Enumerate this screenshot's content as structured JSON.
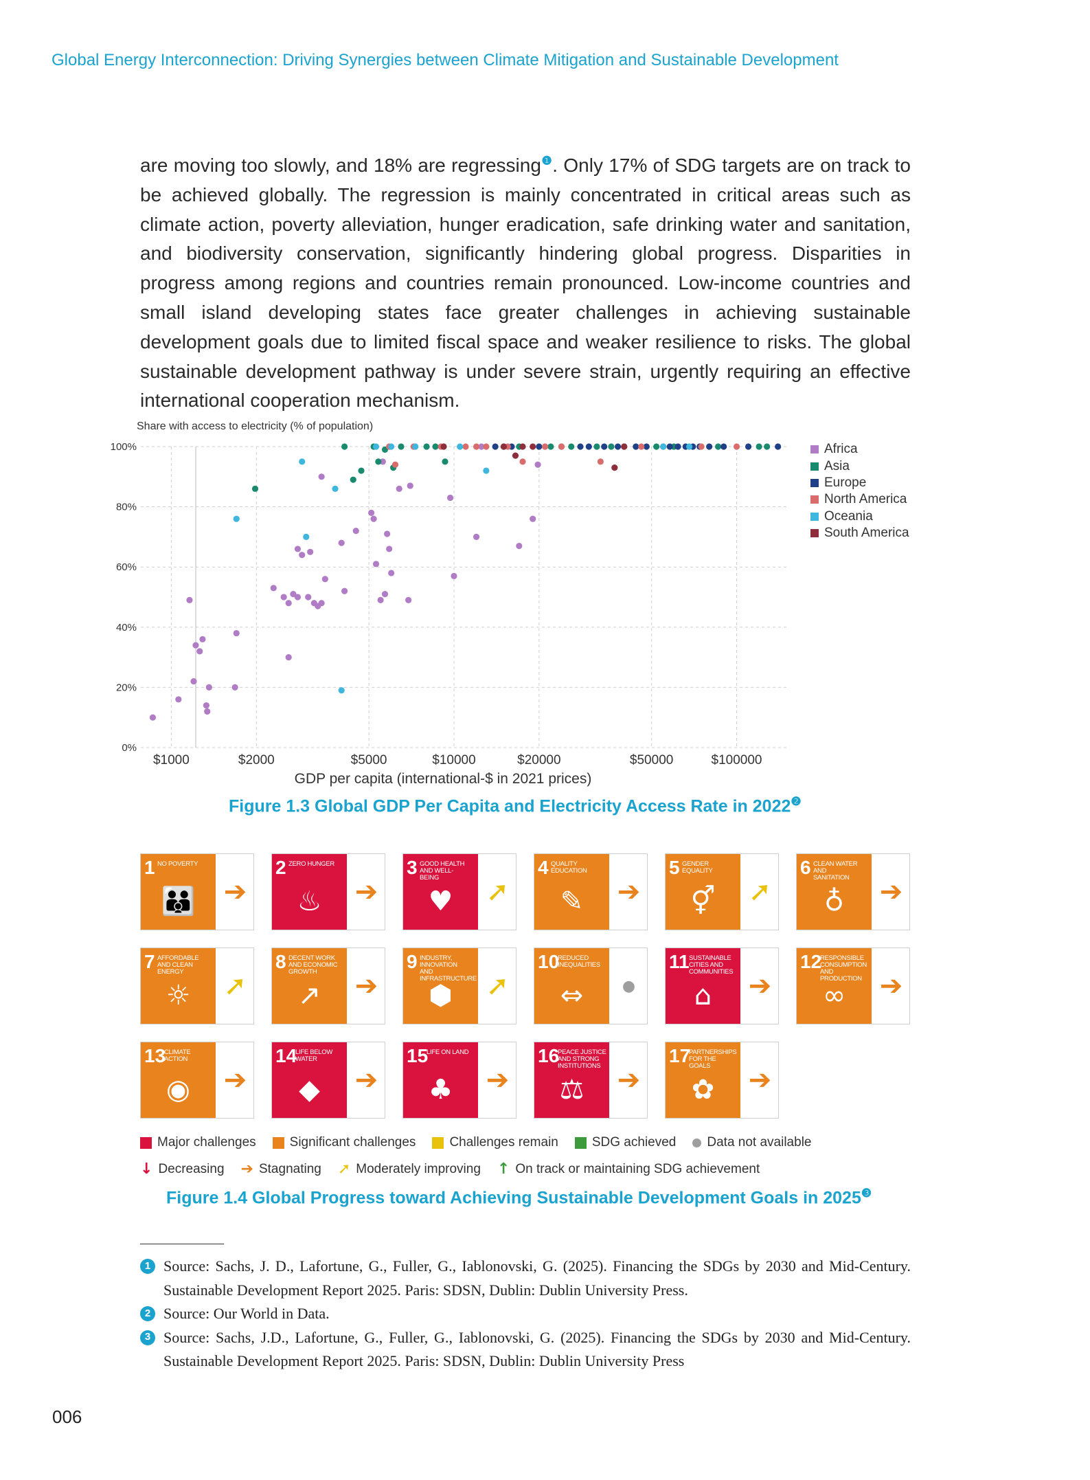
{
  "running_head": "Global Energy Interconnection: Driving Synergies between Climate Mitigation and Sustainable Development",
  "body_text": {
    "before_note": "are moving too slowly, and 18% are regressing",
    "note_mark": "❶",
    "after_note": ". Only 17% of SDG targets are on track to be achieved globally. The regression is mainly concentrated in critical areas such as climate action, poverty alleviation, hunger eradication, safe drinking water and sanitation, and biodiversity conservation, significantly hindering global progress. Disparities in progress among regions and countries remain pronounced. Low-income countries and small island developing states face greater challenges in achieving sustainable development goals due to limited fiscal space and weaker resilience to risks. The global sustainable development pathway is under severe strain, urgently requiring an effective international cooperation mechanism."
  },
  "figure_1_3": {
    "caption": "Figure 1.3    Global GDP Per Capita and Electricity Access Rate in 2022",
    "caption_mark": "❷"
  },
  "chart_data": {
    "type": "scatter",
    "ylabel": "Share with access to electricity (% of population)",
    "xlabel": "GDP per capita (international-$ in 2021 prices)",
    "x_scale": "log",
    "xlim": [
      780,
      150000
    ],
    "ylim": [
      0,
      100
    ],
    "x_ticks": [
      {
        "value": 1000,
        "label": "$1000"
      },
      {
        "value": 2000,
        "label": "$2000"
      },
      {
        "value": 5000,
        "label": "$5000"
      },
      {
        "value": 10000,
        "label": "$10000"
      },
      {
        "value": 20000,
        "label": "$20000"
      },
      {
        "value": 50000,
        "label": "$50000"
      },
      {
        "value": 100000,
        "label": "$100000"
      }
    ],
    "y_ticks": [
      {
        "value": 0,
        "label": "0%"
      },
      {
        "value": 20,
        "label": "20%"
      },
      {
        "value": 40,
        "label": "40%"
      },
      {
        "value": 60,
        "label": "60%"
      },
      {
        "value": 80,
        "label": "80%"
      },
      {
        "value": 100,
        "label": "100%"
      }
    ],
    "grid": true,
    "legend_position": "right",
    "series": [
      {
        "name": "Africa",
        "color": "#b07cc6",
        "points": [
          [
            860,
            10
          ],
          [
            1060,
            16
          ],
          [
            1160,
            49
          ],
          [
            1220,
            34
          ],
          [
            1260,
            32
          ],
          [
            1290,
            36
          ],
          [
            1200,
            22
          ],
          [
            1330,
            14
          ],
          [
            1340,
            12
          ],
          [
            1360,
            20
          ],
          [
            1680,
            20
          ],
          [
            1700,
            38
          ],
          [
            2300,
            53
          ],
          [
            2500,
            50
          ],
          [
            2600,
            48
          ],
          [
            2700,
            51
          ],
          [
            2800,
            50
          ],
          [
            3050,
            50
          ],
          [
            3200,
            48
          ],
          [
            3300,
            47
          ],
          [
            3400,
            48
          ],
          [
            3500,
            56
          ],
          [
            2600,
            30
          ],
          [
            2800,
            66
          ],
          [
            2900,
            64
          ],
          [
            3100,
            65
          ],
          [
            3400,
            90
          ],
          [
            4000,
            68
          ],
          [
            4100,
            52
          ],
          [
            4500,
            72
          ],
          [
            5100,
            78
          ],
          [
            5200,
            76
          ],
          [
            5300,
            61
          ],
          [
            5500,
            49
          ],
          [
            5700,
            51
          ],
          [
            5800,
            71
          ],
          [
            5900,
            66
          ],
          [
            6000,
            58
          ],
          [
            6400,
            86
          ],
          [
            6900,
            49
          ],
          [
            7000,
            87
          ],
          [
            9700,
            83
          ],
          [
            10000,
            57
          ],
          [
            12000,
            70
          ],
          [
            17000,
            67
          ],
          [
            19000,
            76
          ],
          [
            19800,
            94
          ],
          [
            5600,
            95
          ],
          [
            12500,
            100
          ],
          [
            21000,
            100
          ]
        ]
      },
      {
        "name": "Asia",
        "color": "#1a8a6e",
        "points": [
          [
            1980,
            86
          ],
          [
            4100,
            100
          ],
          [
            4400,
            89
          ],
          [
            4700,
            92
          ],
          [
            5200,
            100
          ],
          [
            5400,
            95
          ],
          [
            5700,
            99
          ],
          [
            6100,
            93
          ],
          [
            6500,
            100
          ],
          [
            8000,
            100
          ],
          [
            8600,
            100
          ],
          [
            9300,
            95
          ],
          [
            15000,
            100
          ],
          [
            17000,
            100
          ],
          [
            22000,
            100
          ],
          [
            26000,
            100
          ],
          [
            32000,
            100
          ],
          [
            36000,
            100
          ],
          [
            52000,
            100
          ],
          [
            60000,
            100
          ],
          [
            86000,
            100
          ],
          [
            120000,
            100
          ],
          [
            128000,
            100
          ]
        ]
      },
      {
        "name": "Europe",
        "color": "#1f3f86",
        "points": [
          [
            14000,
            100
          ],
          [
            16000,
            100
          ],
          [
            20000,
            100
          ],
          [
            24000,
            100
          ],
          [
            28000,
            100
          ],
          [
            30000,
            100
          ],
          [
            34000,
            100
          ],
          [
            38000,
            100
          ],
          [
            40000,
            100
          ],
          [
            44000,
            100
          ],
          [
            48000,
            100
          ],
          [
            55000,
            100
          ],
          [
            58000,
            100
          ],
          [
            62000,
            100
          ],
          [
            66000,
            100
          ],
          [
            70000,
            100
          ],
          [
            74000,
            100
          ],
          [
            80000,
            100
          ],
          [
            90000,
            100
          ],
          [
            110000,
            100
          ],
          [
            140000,
            100
          ]
        ]
      },
      {
        "name": "North America",
        "color": "#d96d6d",
        "points": [
          [
            5900,
            100
          ],
          [
            6200,
            94
          ],
          [
            7200,
            100
          ],
          [
            9000,
            100
          ],
          [
            11000,
            100
          ],
          [
            12000,
            100
          ],
          [
            13000,
            100
          ],
          [
            15500,
            100
          ],
          [
            17500,
            95
          ],
          [
            21000,
            100
          ],
          [
            24000,
            100
          ],
          [
            33000,
            95
          ],
          [
            46000,
            100
          ],
          [
            75000,
            100
          ],
          [
            100000,
            100
          ]
        ]
      },
      {
        "name": "Oceania",
        "color": "#3fb6de",
        "points": [
          [
            1700,
            76
          ],
          [
            2900,
            95
          ],
          [
            3000,
            70
          ],
          [
            3800,
            86
          ],
          [
            4000,
            19
          ],
          [
            5300,
            100
          ],
          [
            6000,
            100
          ],
          [
            7300,
            100
          ],
          [
            10500,
            100
          ],
          [
            13000,
            92
          ],
          [
            55000,
            100
          ],
          [
            68000,
            100
          ]
        ]
      },
      {
        "name": "South America",
        "color": "#8e2e3c",
        "points": [
          [
            9200,
            100
          ],
          [
            15000,
            100
          ],
          [
            16500,
            97
          ],
          [
            17500,
            100
          ],
          [
            19000,
            100
          ],
          [
            37000,
            93
          ],
          [
            40000,
            100
          ]
        ]
      }
    ]
  },
  "figure_1_4": {
    "caption": "Figure 1.4    Global Progress toward Achieving Sustainable Development Goals in 2025",
    "caption_mark": "❸",
    "goals": [
      {
        "num": "1",
        "title": "NO POVERTY",
        "icon": "people-icon",
        "glyph": "👪",
        "color": "#e8831e",
        "trend": "stagnating"
      },
      {
        "num": "2",
        "title": "ZERO HUNGER",
        "icon": "bowl-icon",
        "glyph": "♨",
        "color": "#d9133e",
        "trend": "stagnating"
      },
      {
        "num": "3",
        "title": "GOOD HEALTH AND WELL-BEING",
        "icon": "heartbeat-icon",
        "glyph": "♥",
        "color": "#d9133e",
        "trend": "moderately_improving"
      },
      {
        "num": "4",
        "title": "QUALITY EDUCATION",
        "icon": "book-icon",
        "glyph": "✎",
        "color": "#e8831e",
        "trend": "stagnating"
      },
      {
        "num": "5",
        "title": "GENDER EQUALITY",
        "icon": "gender-icon",
        "glyph": "⚥",
        "color": "#e8831e",
        "trend": "moderately_improving"
      },
      {
        "num": "6",
        "title": "CLEAN WATER AND SANITATION",
        "icon": "water-drop-icon",
        "glyph": "♁",
        "color": "#e8831e",
        "trend": "stagnating"
      },
      {
        "num": "7",
        "title": "AFFORDABLE AND CLEAN ENERGY",
        "icon": "sun-power-icon",
        "glyph": "☼",
        "color": "#e8831e",
        "trend": "moderately_improving"
      },
      {
        "num": "8",
        "title": "DECENT WORK AND ECONOMIC GROWTH",
        "icon": "growth-chart-icon",
        "glyph": "↗",
        "color": "#e8831e",
        "trend": "stagnating"
      },
      {
        "num": "9",
        "title": "INDUSTRY, INNOVATION AND INFRASTRUCTURE",
        "icon": "cubes-icon",
        "glyph": "⬢",
        "color": "#e8831e",
        "trend": "moderately_improving"
      },
      {
        "num": "10",
        "title": "REDUCED INEQUALITIES",
        "icon": "equality-icon",
        "glyph": "⇔",
        "color": "#e8831e",
        "trend": "data_not_available"
      },
      {
        "num": "11",
        "title": "SUSTAINABLE CITIES AND COMMUNITIES",
        "icon": "buildings-icon",
        "glyph": "⌂",
        "color": "#d9133e",
        "trend": "stagnating"
      },
      {
        "num": "12",
        "title": "RESPONSIBLE CONSUMPTION AND PRODUCTION",
        "icon": "infinity-icon",
        "glyph": "∞",
        "color": "#e8831e",
        "trend": "stagnating"
      },
      {
        "num": "13",
        "title": "CLIMATE ACTION",
        "icon": "eye-globe-icon",
        "glyph": "◉",
        "color": "#e8831e",
        "trend": "stagnating"
      },
      {
        "num": "14",
        "title": "LIFE BELOW WATER",
        "icon": "fish-icon",
        "glyph": "◆",
        "color": "#d9133e",
        "trend": "stagnating"
      },
      {
        "num": "15",
        "title": "LIFE ON LAND",
        "icon": "tree-icon",
        "glyph": "♣",
        "color": "#d9133e",
        "trend": "stagnating"
      },
      {
        "num": "16",
        "title": "PEACE JUSTICE AND STRONG INSTITUTIONS",
        "icon": "dove-icon",
        "glyph": "⚖",
        "color": "#d9133e",
        "trend": "stagnating"
      },
      {
        "num": "17",
        "title": "PARTNERSHIPS FOR THE GOALS",
        "icon": "rings-icon",
        "glyph": "✿",
        "color": "#e8831e",
        "trend": "stagnating"
      }
    ],
    "trend_styles": {
      "stagnating": {
        "glyph": "➔",
        "color": "#e8831e"
      },
      "moderately_improving": {
        "glyph": "➚",
        "color": "#e8c20c"
      },
      "data_not_available": {
        "glyph": "●",
        "color": "#9e9e9e"
      }
    },
    "legend_status": [
      {
        "label": "Major challenges",
        "color": "#d9133e"
      },
      {
        "label": "Significant challenges",
        "color": "#e8831e"
      },
      {
        "label": "Challenges remain",
        "color": "#e8c20c"
      },
      {
        "label": "SDG achieved",
        "color": "#3e9b3d"
      },
      {
        "label": "Data not available",
        "color": "#9e9e9e",
        "shape": "circle"
      }
    ],
    "legend_trend": [
      {
        "label": "Decreasing",
        "glyph": "↓",
        "color": "#d9133e"
      },
      {
        "label": "Stagnating",
        "glyph": "➔",
        "color": "#e8831e"
      },
      {
        "label": "Moderately improving",
        "glyph": "➚",
        "color": "#e8c20c"
      },
      {
        "label": "On track or maintaining SDG achievement",
        "glyph": "↑",
        "color": "#3e9b3d"
      }
    ]
  },
  "footnotes": [
    {
      "mark": "1",
      "text": "Source: Sachs, J. D., Lafortune, G., Fuller, G., Iablonovski, G. (2025). Financing the SDGs by 2030 and Mid-Century. Sustainable Development Report 2025. Paris: SDSN, Dublin: Dublin University Press."
    },
    {
      "mark": "2",
      "text": "Source: Our World in Data."
    },
    {
      "mark": "3",
      "text": "Source: Sachs, J.D., Lafortune, G., Fuller, G., Iablonovski, G. (2025). Financing the SDGs by 2030 and Mid-Century. Sustainable Development Report 2025. Paris: SDSN, Dublin: Dublin University Press"
    }
  ],
  "page_number": "006"
}
